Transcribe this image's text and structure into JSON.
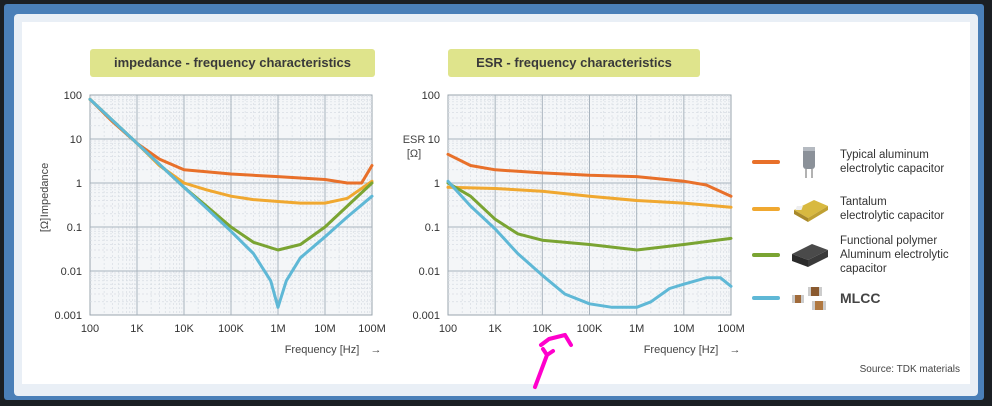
{
  "chart_data": [
    {
      "type": "line",
      "title": "impedance - frequency characteristics",
      "xlabel": "Frequency",
      "xunit": "[Hz]",
      "ylabel": "Impedance",
      "yunit": "[Ω]",
      "xscale": "log",
      "yscale": "log",
      "xlim": [
        100,
        100000000
      ],
      "ylim": [
        0.001,
        100
      ],
      "x_tick_labels": [
        "100",
        "1K",
        "10K",
        "100K",
        "1M",
        "10M",
        "100M"
      ],
      "y_tick_labels": [
        "100",
        "10",
        "1",
        "0.1",
        "0.01",
        "0.001"
      ],
      "grid": true,
      "series": [
        {
          "name": "Typical aluminum electrolytic capacitor",
          "color": "#e8702a",
          "x": [
            100,
            300,
            1000,
            3000,
            10000,
            30000,
            100000,
            300000,
            1000000,
            3000000,
            10000000,
            30000000,
            60000000,
            100000000
          ],
          "y": [
            80,
            25,
            8,
            3.5,
            2,
            1.8,
            1.6,
            1.5,
            1.4,
            1.3,
            1.2,
            1.0,
            1.0,
            2.5
          ]
        },
        {
          "name": "Tantalum electrolytic capacitor",
          "color": "#f0a830",
          "x": [
            100,
            1000,
            3000,
            10000,
            30000,
            100000,
            300000,
            1000000,
            3000000,
            10000000,
            30000000,
            100000000
          ],
          "y": [
            80,
            8,
            2.5,
            1.0,
            0.7,
            0.5,
            0.42,
            0.38,
            0.35,
            0.35,
            0.45,
            1.1
          ]
        },
        {
          "name": "Functional polymer Aluminum electrolytic capacitor",
          "color": "#7aa432",
          "x": [
            100,
            1000,
            10000,
            30000,
            100000,
            300000,
            1000000,
            3000000,
            10000000,
            30000000,
            100000000
          ],
          "y": [
            80,
            8,
            0.8,
            0.3,
            0.1,
            0.045,
            0.03,
            0.04,
            0.1,
            0.3,
            1.0
          ]
        },
        {
          "name": "MLCC",
          "color": "#5fb8d6",
          "x": [
            100,
            1000,
            10000,
            30000,
            100000,
            300000,
            700000,
            1000000,
            1500000,
            3000000,
            10000000,
            30000000,
            100000000
          ],
          "y": [
            80,
            8,
            0.8,
            0.27,
            0.08,
            0.025,
            0.006,
            0.0015,
            0.006,
            0.02,
            0.06,
            0.17,
            0.5
          ]
        }
      ]
    },
    {
      "type": "line",
      "title": "ESR - frequency characteristics",
      "xlabel": "Frequency",
      "xunit": "[Hz]",
      "ylabel": "ESR",
      "yunit": "[Ω]",
      "xscale": "log",
      "yscale": "log",
      "xlim": [
        100,
        100000000
      ],
      "ylim": [
        0.001,
        100
      ],
      "x_tick_labels": [
        "100",
        "1K",
        "10K",
        "100K",
        "1M",
        "10M",
        "100M"
      ],
      "y_tick_labels": [
        "100",
        "10",
        "1",
        "0.1",
        "0.01",
        "0.001"
      ],
      "grid": true,
      "series": [
        {
          "name": "Typical aluminum electrolytic capacitor",
          "color": "#e8702a",
          "x": [
            100,
            300,
            1000,
            10000,
            100000,
            1000000,
            10000000,
            30000000,
            100000000
          ],
          "y": [
            4.5,
            2.5,
            2.0,
            1.7,
            1.5,
            1.4,
            1.1,
            0.9,
            0.5
          ]
        },
        {
          "name": "Tantalum electrolytic capacitor",
          "color": "#f0a830",
          "x": [
            100,
            1000,
            10000,
            100000,
            1000000,
            10000000,
            100000000
          ],
          "y": [
            0.8,
            0.75,
            0.65,
            0.5,
            0.4,
            0.35,
            0.28
          ]
        },
        {
          "name": "Functional polymer Aluminum electrolytic capacitor",
          "color": "#7aa432",
          "x": [
            100,
            300,
            1000,
            3000,
            10000,
            100000,
            1000000,
            10000000,
            100000000
          ],
          "y": [
            1.0,
            0.5,
            0.15,
            0.07,
            0.05,
            0.04,
            0.03,
            0.04,
            0.055
          ]
        },
        {
          "name": "MLCC",
          "color": "#5fb8d6",
          "x": [
            100,
            300,
            1000,
            3000,
            10000,
            30000,
            100000,
            300000,
            1000000,
            2000000,
            5000000,
            10000000,
            30000000,
            60000000,
            100000000
          ],
          "y": [
            1.1,
            0.3,
            0.09,
            0.025,
            0.008,
            0.003,
            0.0018,
            0.0015,
            0.0015,
            0.002,
            0.004,
            0.005,
            0.007,
            0.007,
            0.0045
          ]
        }
      ]
    }
  ],
  "legend": [
    {
      "label": "Typical aluminum\nelectrolytic capacitor",
      "color": "#e8702a",
      "icon": "aluminum-capacitor-icon"
    },
    {
      "label": "Tantalum\nelectrolytic capacitor",
      "color": "#f0a830",
      "icon": "tantalum-capacitor-icon"
    },
    {
      "label": "Functional polymer\nAluminum electrolytic\ncapacitor",
      "color": "#7aa432",
      "icon": "polymer-capacitor-icon"
    },
    {
      "label": "MLCC",
      "color": "#5fb8d6",
      "icon": "mlcc-icon"
    }
  ],
  "source": "Source: TDK materials",
  "annotation": {
    "color": "#ff00cc",
    "icon": "arrow-annotation-icon"
  }
}
